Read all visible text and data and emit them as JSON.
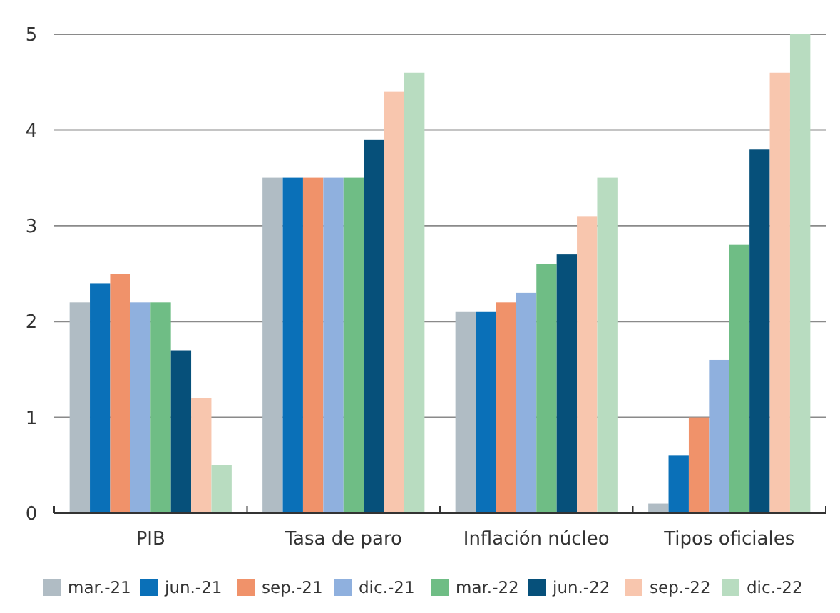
{
  "chart_data": {
    "type": "bar",
    "categories": [
      "PIB",
      "Tasa de paro",
      "Inflación núcleo",
      "Tipos oficiales"
    ],
    "series": [
      {
        "name": "mar.-21",
        "color": "#b0bcc4",
        "values": [
          2.2,
          3.5,
          2.1,
          0.1
        ]
      },
      {
        "name": "jun.-21",
        "color": "#0a70b8",
        "values": [
          2.4,
          3.5,
          2.1,
          0.6
        ]
      },
      {
        "name": "sep.-21",
        "color": "#f0926a",
        "values": [
          2.5,
          3.5,
          2.2,
          1.0
        ]
      },
      {
        "name": "dic.-21",
        "color": "#8fb0de",
        "values": [
          2.2,
          3.5,
          2.3,
          1.6
        ]
      },
      {
        "name": "mar.-22",
        "color": "#6fbd85",
        "values": [
          2.2,
          3.5,
          2.6,
          2.8
        ]
      },
      {
        "name": "jun.-22",
        "color": "#06507a",
        "values": [
          1.7,
          3.9,
          2.7,
          3.8
        ]
      },
      {
        "name": "sep.-22",
        "color": "#f8c6ae",
        "values": [
          1.2,
          4.4,
          3.1,
          4.6
        ]
      },
      {
        "name": "dic.-22",
        "color": "#b8dcc0",
        "values": [
          0.5,
          4.6,
          3.5,
          5.0
        ]
      }
    ],
    "ylim": [
      0,
      5
    ],
    "yticks": [
      0,
      1,
      2,
      3,
      4,
      5
    ],
    "grid": "y",
    "legend": "bottom"
  }
}
